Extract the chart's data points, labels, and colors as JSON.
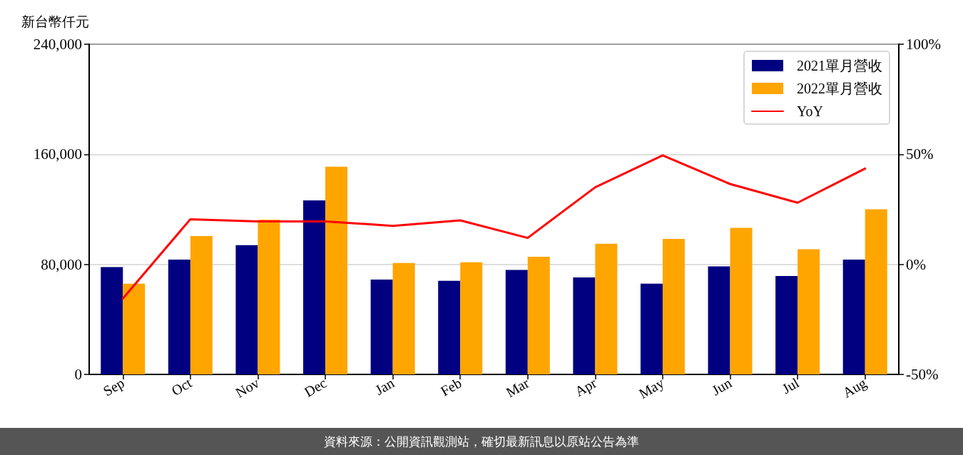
{
  "chart_data": {
    "type": "bar",
    "ylabel": "新台幣仟元",
    "categories": [
      "Sep",
      "Oct",
      "Nov",
      "Dec",
      "Jan",
      "Feb",
      "Mar",
      "Apr",
      "May",
      "Jun",
      "Jul",
      "Aug"
    ],
    "series": [
      {
        "name": "2021單月營收",
        "color": "#000080",
        "values": [
          78000,
          83500,
          94000,
          126500,
          69000,
          68000,
          76000,
          70500,
          66000,
          78500,
          71500,
          83500
        ]
      },
      {
        "name": "2022單月營收",
        "color": "#ffa500",
        "values": [
          66000,
          100500,
          112500,
          151000,
          81000,
          81500,
          85500,
          95000,
          98500,
          106500,
          91000,
          120000
        ]
      },
      {
        "name": "YoY",
        "type": "line",
        "axis": "y2",
        "color": "#ff0000",
        "values": [
          -15.5,
          20.5,
          19.5,
          19.5,
          17.5,
          20,
          12,
          35,
          49.5,
          36.5,
          28,
          43.5
        ]
      }
    ],
    "ylim": [
      0,
      240000
    ],
    "yticks": [
      0,
      {
        "value": 80000,
        "label": "80,000"
      },
      {
        "value": 160000,
        "label": "160,000"
      },
      {
        "value": 240000,
        "label": "240,000"
      }
    ],
    "y2lim": [
      -50,
      100
    ],
    "y2ticks": [
      {
        "value": -50,
        "label": "-50%"
      },
      {
        "value": 0,
        "label": "0%"
      },
      {
        "value": 50,
        "label": "50%"
      },
      {
        "value": 100,
        "label": "100%"
      }
    ],
    "grid": "y",
    "legend": "top right",
    "marker": "none",
    "line_style": "solid",
    "annotations": [
      "資料來源：公開資訊觀測站，確切最新訊息以原站公告為準"
    ]
  }
}
